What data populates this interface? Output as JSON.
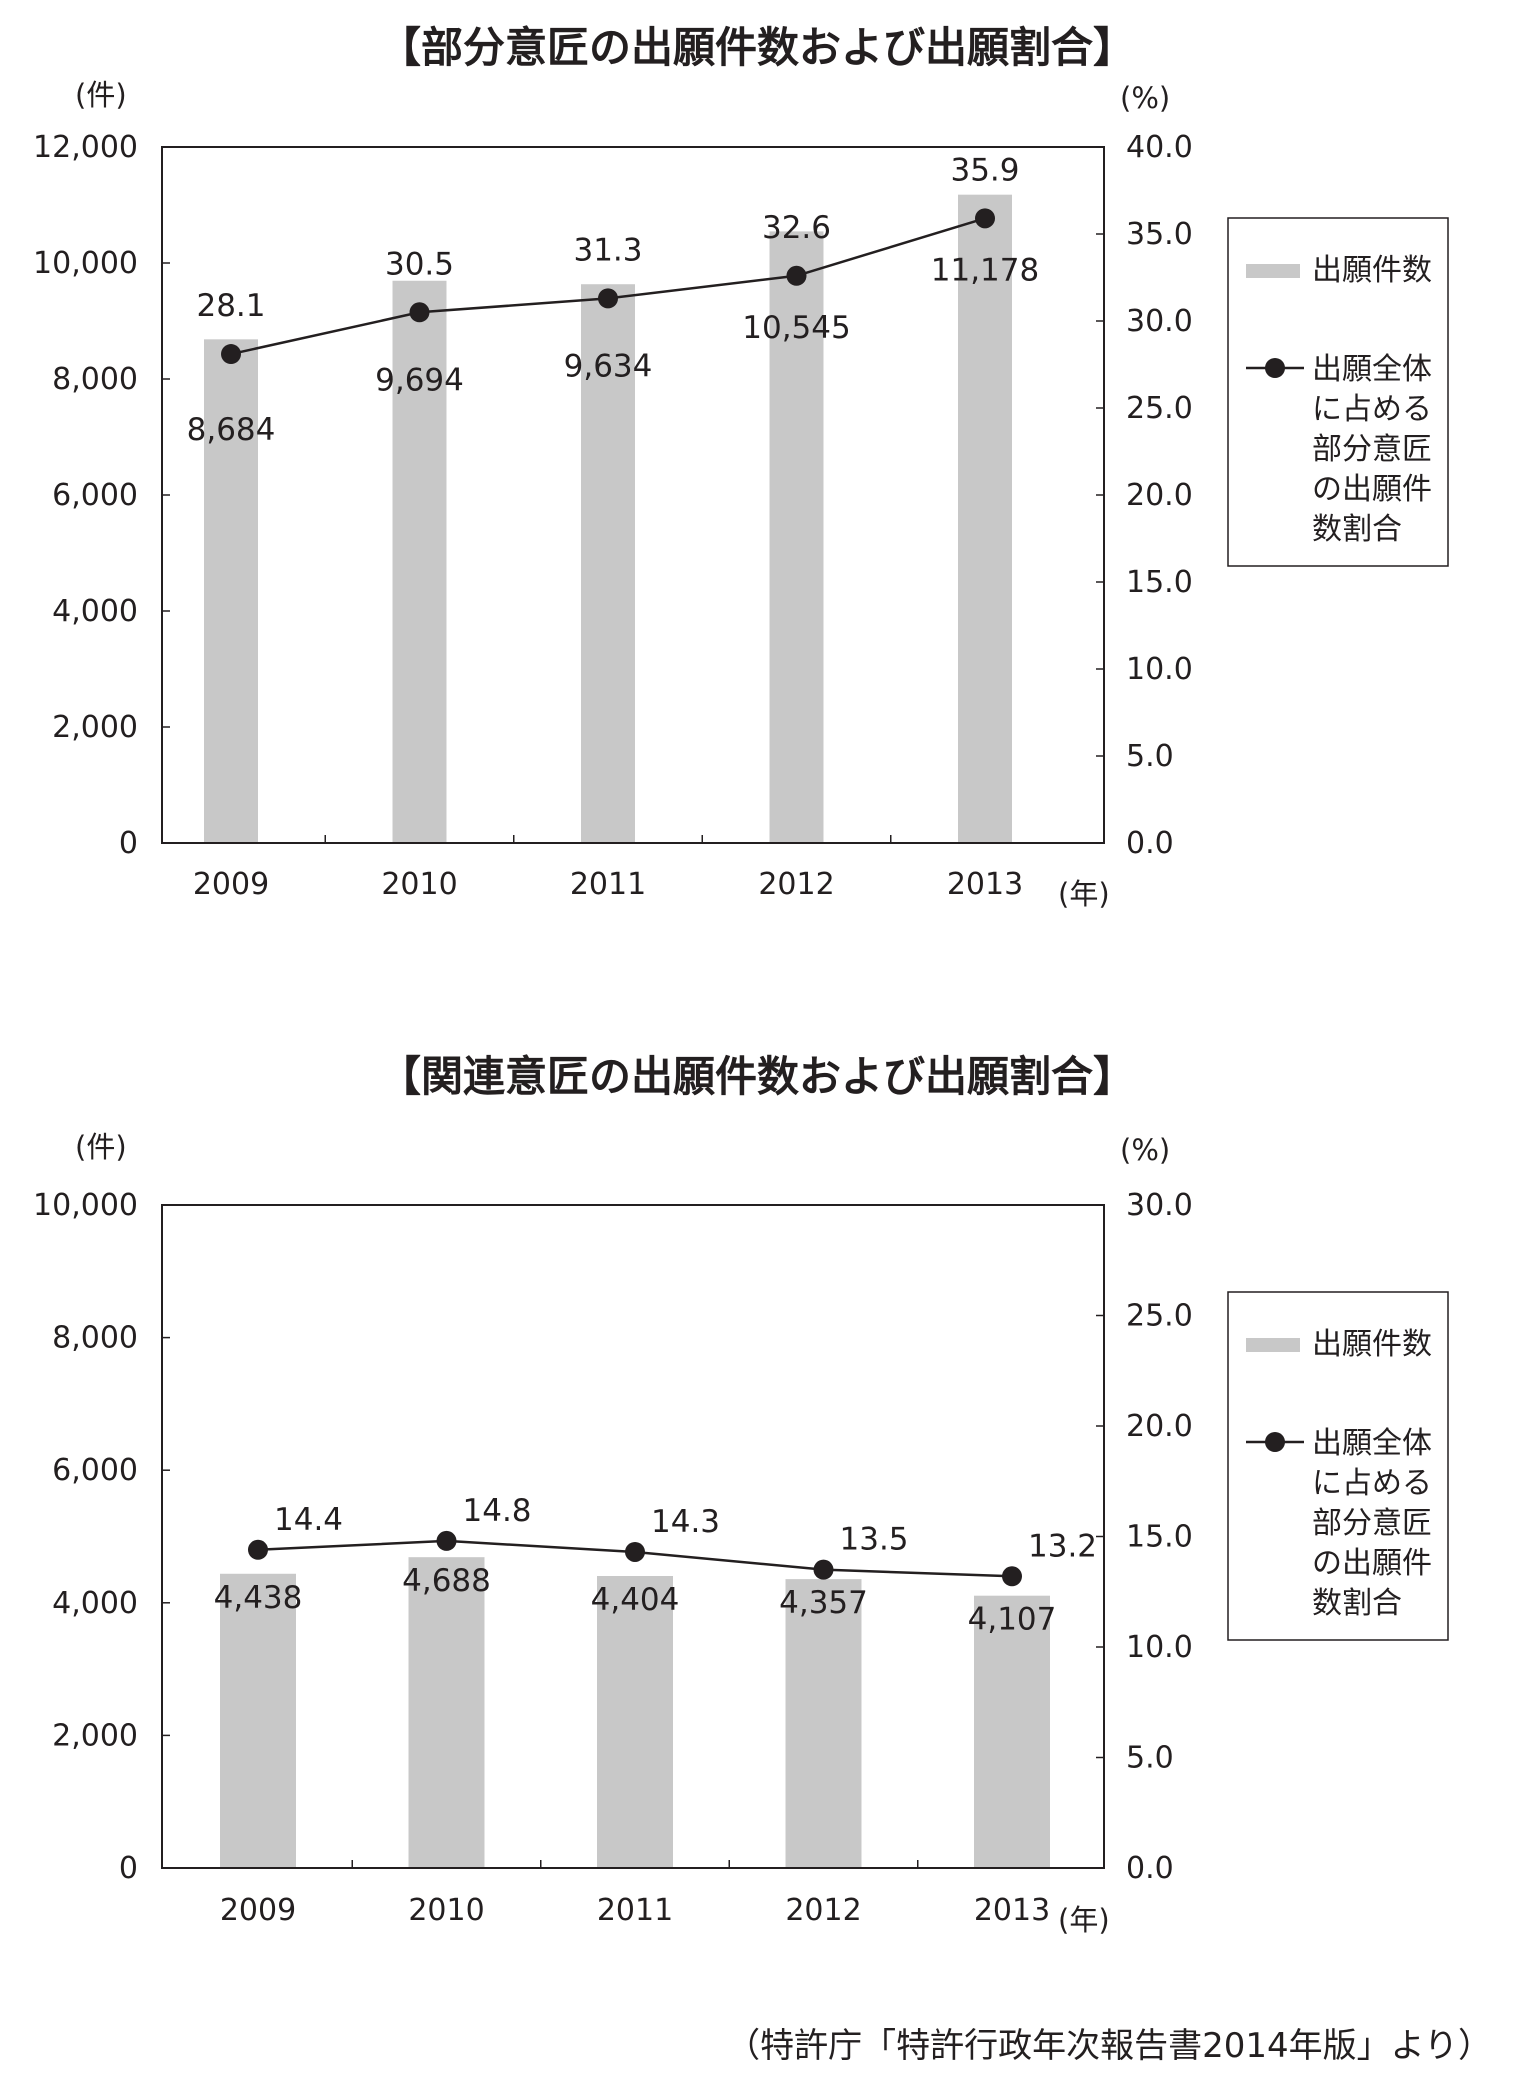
{
  "source_note": "（特許庁「特許行政年次報告書2014年版」より）",
  "chart_data": [
    {
      "type": "bar",
      "title": "【部分意匠の出願件数および出願割合】",
      "y_unit": "(件)",
      "y2_unit": "(%)",
      "x_unit": "(年)",
      "categories": [
        "2009",
        "2010",
        "2011",
        "2012",
        "2013"
      ],
      "ylim": [
        0,
        12000
      ],
      "y2lim": [
        0,
        40
      ],
      "y_ticks": [
        "0",
        "2,000",
        "4,000",
        "6,000",
        "8,000",
        "10,000",
        "12,000"
      ],
      "y2_ticks": [
        "0.0",
        "5.0",
        "10.0",
        "15.0",
        "20.0",
        "25.0",
        "30.0",
        "35.0",
        "40.0"
      ],
      "legend_position": "right",
      "series": [
        {
          "name": "出願件数",
          "kind": "bar",
          "axis": "left",
          "color": "#c8c8c8",
          "values": [
            8684,
            9694,
            9634,
            10545,
            11178
          ],
          "labels": [
            "8,684",
            "9,694",
            "9,634",
            "10,545",
            "11,178"
          ]
        },
        {
          "name": "出願全体に占める部分意匠の出願件数割合",
          "legend_lines": [
            "出願全体",
            "に占める",
            "部分意匠",
            "の出願件",
            "数割合"
          ],
          "kind": "line",
          "axis": "right",
          "color": "#231f20",
          "values": [
            28.1,
            30.5,
            31.3,
            32.6,
            35.9
          ],
          "labels": [
            "28.1",
            "30.5",
            "31.3",
            "32.6",
            "35.9"
          ]
        }
      ]
    },
    {
      "type": "bar",
      "title": "【関連意匠の出願件数および出願割合】",
      "y_unit": "(件)",
      "y2_unit": "(%)",
      "x_unit": "(年)",
      "categories": [
        "2009",
        "2010",
        "2011",
        "2012",
        "2013"
      ],
      "ylim": [
        0,
        10000
      ],
      "y2lim": [
        0,
        30
      ],
      "y_ticks": [
        "0",
        "2,000",
        "4,000",
        "6,000",
        "8,000",
        "10,000"
      ],
      "y2_ticks": [
        "0.0",
        "5.0",
        "10.0",
        "15.0",
        "20.0",
        "25.0",
        "30.0"
      ],
      "legend_position": "right",
      "series": [
        {
          "name": "出願件数",
          "kind": "bar",
          "axis": "left",
          "color": "#c8c8c8",
          "values": [
            4438,
            4688,
            4404,
            4357,
            4107
          ],
          "labels": [
            "4,438",
            "4,688",
            "4,404",
            "4,357",
            "4,107"
          ]
        },
        {
          "name": "出願全体に占める部分意匠の出願件数割合",
          "legend_lines": [
            "出願全体",
            "に占める",
            "部分意匠",
            "の出願件",
            "数割合"
          ],
          "kind": "line",
          "axis": "right",
          "color": "#231f20",
          "values": [
            14.4,
            14.8,
            14.3,
            13.5,
            13.2
          ],
          "labels": [
            "14.4",
            "14.8",
            "14.3",
            "13.5",
            "13.2"
          ]
        }
      ]
    }
  ]
}
